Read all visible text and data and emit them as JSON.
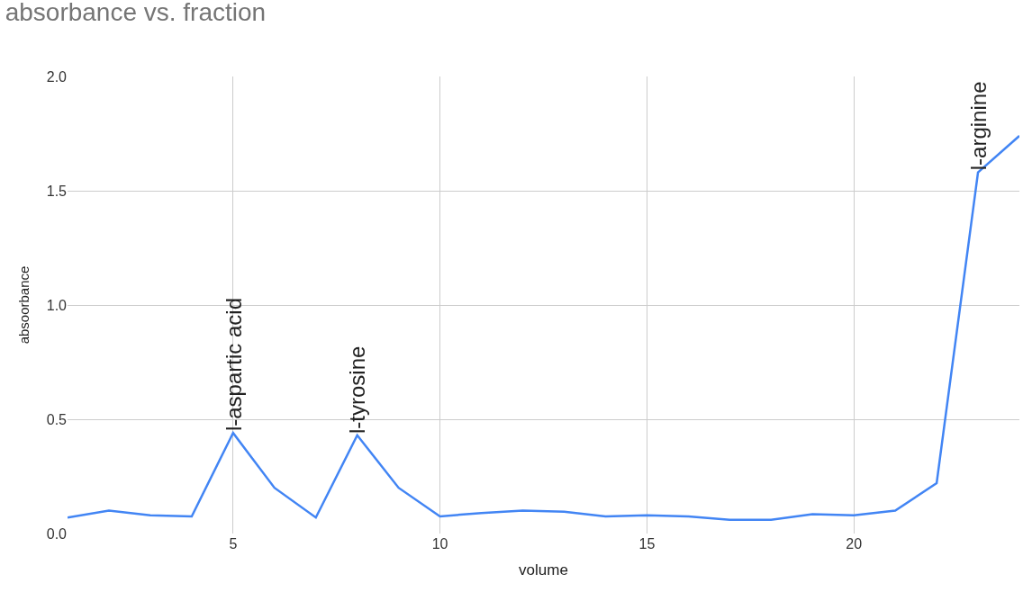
{
  "chart_data": {
    "type": "line",
    "title": "absorbance vs. fraction",
    "xlabel": "volume",
    "ylabel": "absoorbance",
    "x": [
      1,
      2,
      3,
      4,
      5,
      6,
      7,
      8,
      9,
      10,
      11,
      12,
      13,
      14,
      15,
      16,
      17,
      18,
      19,
      20,
      21,
      22,
      23,
      24
    ],
    "series": [
      {
        "color": "#4285f4",
        "values": [
          0.07,
          0.1,
          0.08,
          0.075,
          0.44,
          0.2,
          0.07,
          0.43,
          0.2,
          0.075,
          0.09,
          0.1,
          0.095,
          0.075,
          0.08,
          0.075,
          0.06,
          0.06,
          0.085,
          0.08,
          0.1,
          0.22,
          1.58,
          1.74
        ]
      }
    ],
    "xlim": [
      1,
      24
    ],
    "xticks": [
      5,
      10,
      15,
      20
    ],
    "ylim": [
      0,
      2
    ],
    "yticks": [
      {
        "value": 0,
        "label": "0.0"
      },
      {
        "value": 0.5,
        "label": "0.5"
      },
      {
        "value": 1,
        "label": "1.0"
      },
      {
        "value": 1.5,
        "label": "1.5"
      },
      {
        "value": 2,
        "label": "2.0"
      }
    ],
    "grid": true,
    "marker": "none",
    "line_style": "solid",
    "annotations": [
      {
        "text": "l-aspartic acid",
        "x": 5,
        "y": 0.44
      },
      {
        "text": "l-tyrosine",
        "x": 8,
        "y": 0.43
      },
      {
        "text": "l-arginine",
        "x": 23,
        "y": 1.58
      }
    ]
  }
}
